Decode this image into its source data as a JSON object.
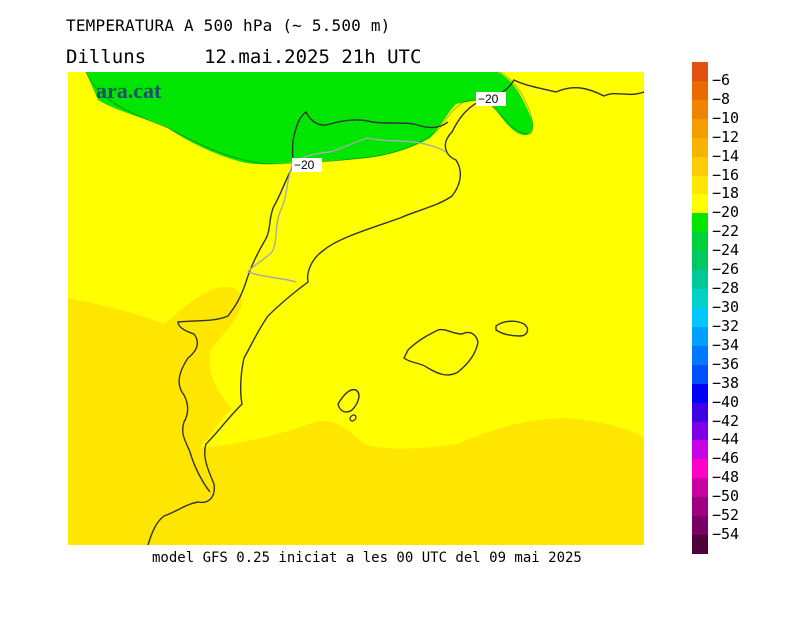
{
  "header": {
    "title": "TEMPERATURA A 500 hPa (~ 5.500 m)",
    "day": "Dilluns",
    "datetime": "12.mai.2025 21h UTC"
  },
  "map": {
    "logo_text": "ara.cat",
    "isotherm_labels": [
      "−20",
      "−20"
    ],
    "fill_colors": {
      "range_-16_-14": "#ffe600",
      "range_-18_-16": "#ffff00",
      "range_-22_-20": "#00e600"
    }
  },
  "footer": {
    "model_info": "model GFS 0.25 iniciat a les 00 UTC del 09 mai 2025"
  },
  "legend": {
    "labels": [
      "−6",
      "−8",
      "−10",
      "−12",
      "−14",
      "−16",
      "−18",
      "−20",
      "−22",
      "−24",
      "−26",
      "−28",
      "−30",
      "−32",
      "−34",
      "−36",
      "−38",
      "−40",
      "−42",
      "−44",
      "−46",
      "−48",
      "−50",
      "−52",
      "−54"
    ],
    "colors": [
      "#e05010",
      "#ea6a00",
      "#f08400",
      "#f59d00",
      "#f8b300",
      "#fccc00",
      "#ffe600",
      "#ffff00",
      "#00e600",
      "#00d23c",
      "#00c864",
      "#00c896",
      "#00d2c8",
      "#00c8ff",
      "#00a0ff",
      "#0078ff",
      "#0050ff",
      "#0000ff",
      "#4000e6",
      "#8000e6",
      "#c800e6",
      "#ff00c8",
      "#c800a0",
      "#a00080",
      "#780064",
      "#50003c"
    ]
  }
}
